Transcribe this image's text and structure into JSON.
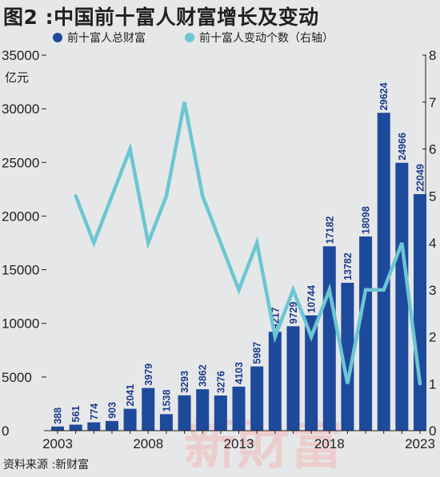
{
  "title": "图2 :中国前十富人财富增长及变动",
  "source": "资料来源 :新财富",
  "watermark": "新財富",
  "colors": {
    "bar": "#1e4a9c",
    "line": "#6cc6d3",
    "text": "#231f20",
    "label": "#1b3c8c"
  },
  "chart_data": {
    "type": "bar+line",
    "left_axis": {
      "unit": "亿元",
      "ylim": [
        0,
        35000
      ],
      "ticks": [
        "0",
        "5000",
        "10000",
        "15000",
        "20000",
        "25000",
        "30000",
        "35000"
      ]
    },
    "right_axis": {
      "ylim": [
        0,
        8
      ],
      "ticks": [
        "0",
        "1",
        "2",
        "3",
        "4",
        "5",
        "6",
        "7",
        "8"
      ]
    },
    "x_ticks": [
      "2003",
      "2008",
      "2013",
      "2018",
      "2023"
    ],
    "years": [
      2003,
      2004,
      2005,
      2006,
      2007,
      2008,
      2009,
      2010,
      2011,
      2012,
      2013,
      2014,
      2015,
      2016,
      2017,
      2018,
      2019,
      2020,
      2021,
      2022,
      2023
    ],
    "series": [
      {
        "name": "前十富人总财富",
        "axis": "left",
        "type": "bar",
        "values": [
          388,
          561,
          774,
          903,
          2041,
          3979,
          1538,
          3293,
          3862,
          3276,
          4103,
          5987,
          9217,
          9729,
          10744,
          17182,
          13782,
          18098,
          29624,
          24966,
          22049
        ],
        "labels": [
          "388",
          "561",
          "774",
          "903",
          "2041",
          "3979",
          "1538",
          "3293",
          "3862",
          "3276",
          "4103",
          "5987",
          "9217",
          "9729",
          "10744",
          "17182",
          "13782",
          "18098",
          "29624",
          "24966",
          "22049"
        ]
      },
      {
        "name": "前十富人变动个数（右轴）",
        "axis": "right",
        "type": "line",
        "values": [
          null,
          5,
          4,
          5,
          6,
          4,
          5,
          7,
          5,
          4,
          3,
          4,
          2,
          3,
          2,
          3,
          1,
          3,
          3,
          4,
          1
        ]
      }
    ]
  }
}
